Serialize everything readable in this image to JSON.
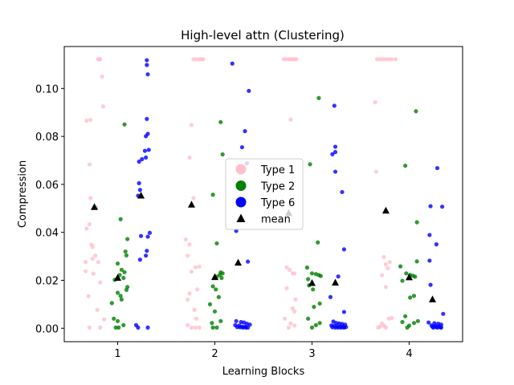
{
  "chart_data": {
    "type": "scatter",
    "title": "High-level attn (Clustering)",
    "xlabel": "Learning Blocks",
    "ylabel": "Compression",
    "xlim": [
      0.45,
      4.55
    ],
    "ylim": [
      -0.0056,
      0.1175
    ],
    "xticks": [
      1,
      2,
      3,
      4
    ],
    "xtick_labels": [
      "1",
      "2",
      "3",
      "4"
    ],
    "yticks": [
      0.0,
      0.02,
      0.04,
      0.06,
      0.08,
      0.1
    ],
    "ytick_labels": [
      "0.00",
      "0.02",
      "0.04",
      "0.06",
      "0.08",
      "0.10"
    ],
    "legend_position": "center",
    "series": [
      {
        "name": "Type 1",
        "color": "#ffc0cb",
        "marker": "circle",
        "points": [
          [
            0.8,
            0.1122
          ],
          [
            0.81,
            0.1122
          ],
          [
            0.82,
            0.1122
          ],
          [
            0.84,
            0.105
          ],
          [
            0.85,
            0.0925
          ],
          [
            0.68,
            0.0866
          ],
          [
            0.72,
            0.0869
          ],
          [
            0.71,
            0.0683
          ],
          [
            0.72,
            0.0543
          ],
          [
            0.78,
            0.0505
          ],
          [
            0.71,
            0.0434
          ],
          [
            0.68,
            0.0416
          ],
          [
            0.73,
            0.0349
          ],
          [
            0.74,
            0.0339
          ],
          [
            0.77,
            0.0303
          ],
          [
            0.74,
            0.029
          ],
          [
            0.67,
            0.0276
          ],
          [
            0.8,
            0.0276
          ],
          [
            0.75,
            0.0228
          ],
          [
            0.67,
            0.0238
          ],
          [
            0.82,
            0.0191
          ],
          [
            0.7,
            0.0134
          ],
          [
            0.79,
            0.0077
          ],
          [
            0.86,
            0.0037
          ],
          [
            0.71,
            0.0003
          ],
          [
            0.82,
            0.0003
          ],
          [
            1.78,
            0.1122
          ],
          [
            1.81,
            0.1122
          ],
          [
            1.84,
            0.1122
          ],
          [
            1.86,
            0.1122
          ],
          [
            1.88,
            0.1122
          ],
          [
            1.76,
            0.0848
          ],
          [
            1.74,
            0.0712
          ],
          [
            1.78,
            0.0543
          ],
          [
            1.7,
            0.037
          ],
          [
            1.74,
            0.035
          ],
          [
            1.72,
            0.0303
          ],
          [
            1.8,
            0.0254
          ],
          [
            1.76,
            0.0236
          ],
          [
            1.84,
            0.0257
          ],
          [
            1.82,
            0.0162
          ],
          [
            1.74,
            0.0145
          ],
          [
            1.72,
            0.0119
          ],
          [
            1.79,
            0.0077
          ],
          [
            1.81,
            0.004
          ],
          [
            1.72,
            0.0013
          ],
          [
            1.76,
            0.0003
          ],
          [
            1.8,
            0.0003
          ],
          [
            1.84,
            0.0003
          ],
          [
            2.71,
            0.1122
          ],
          [
            2.73,
            0.1122
          ],
          [
            2.76,
            0.1122
          ],
          [
            2.78,
            0.1122
          ],
          [
            2.8,
            0.1122
          ],
          [
            2.82,
            0.1122
          ],
          [
            2.84,
            0.1122
          ],
          [
            2.78,
            0.087
          ],
          [
            2.79,
            0.0519
          ],
          [
            2.74,
            0.0254
          ],
          [
            2.77,
            0.0243
          ],
          [
            2.8,
            0.0229
          ],
          [
            2.82,
            0.0229
          ],
          [
            2.74,
            0.0167
          ],
          [
            2.83,
            0.012
          ],
          [
            2.8,
            0.0083
          ],
          [
            2.82,
            0.007
          ],
          [
            2.72,
            0.004
          ],
          [
            2.78,
            0.002
          ],
          [
            2.82,
            0.0011
          ],
          [
            2.76,
            0.0003
          ],
          [
            3.67,
            0.1122
          ],
          [
            3.7,
            0.1122
          ],
          [
            3.73,
            0.1122
          ],
          [
            3.76,
            0.1122
          ],
          [
            3.79,
            0.1122
          ],
          [
            3.82,
            0.1122
          ],
          [
            3.86,
            0.1122
          ],
          [
            3.65,
            0.0943
          ],
          [
            3.66,
            0.0653
          ],
          [
            3.74,
            0.0297
          ],
          [
            3.76,
            0.0267
          ],
          [
            3.8,
            0.0276
          ],
          [
            3.78,
            0.025
          ],
          [
            3.72,
            0.0221
          ],
          [
            3.76,
            0.0172
          ],
          [
            3.79,
            0.004
          ],
          [
            3.82,
            0.0043
          ],
          [
            3.72,
            0.002
          ],
          [
            3.74,
            0.0011
          ],
          [
            3.7,
            0.0007
          ],
          [
            3.68,
            0.0003
          ],
          [
            3.76,
            0.0003
          ]
        ]
      },
      {
        "name": "Type 2",
        "color": "#008000",
        "marker": "circle",
        "points": [
          [
            1.07,
            0.085
          ],
          [
            1.03,
            0.0455
          ],
          [
            1.1,
            0.0372
          ],
          [
            1.08,
            0.032
          ],
          [
            1.09,
            0.0304
          ],
          [
            1.0,
            0.027
          ],
          [
            1.04,
            0.0244
          ],
          [
            1.07,
            0.0234
          ],
          [
            1.02,
            0.0222
          ],
          [
            1.06,
            0.021
          ],
          [
            0.97,
            0.0202
          ],
          [
            1.1,
            0.0172
          ],
          [
            1.09,
            0.016
          ],
          [
            1.0,
            0.0148
          ],
          [
            1.03,
            0.0135
          ],
          [
            1.04,
            0.012
          ],
          [
            0.94,
            0.0105
          ],
          [
            0.96,
            0.004
          ],
          [
            1.0,
            0.003
          ],
          [
            1.06,
            0.0013
          ],
          [
            1.01,
            0.0003
          ],
          [
            0.98,
            0.0003
          ],
          [
            2.06,
            0.086
          ],
          [
            2.08,
            0.0725
          ],
          [
            1.98,
            0.0557
          ],
          [
            2.02,
            0.0354
          ],
          [
            2.06,
            0.0233
          ],
          [
            2.08,
            0.0229
          ],
          [
            2.05,
            0.0222
          ],
          [
            2.02,
            0.0215
          ],
          [
            2.07,
            0.021
          ],
          [
            1.98,
            0.0175
          ],
          [
            2.01,
            0.0162
          ],
          [
            2.04,
            0.013
          ],
          [
            1.95,
            0.01
          ],
          [
            2.0,
            0.007
          ],
          [
            2.06,
            0.003
          ],
          [
            1.97,
            0.0022
          ],
          [
            1.98,
            0.0003
          ],
          [
            2.02,
            0.0003
          ],
          [
            3.07,
            0.096
          ],
          [
            2.98,
            0.0684
          ],
          [
            3.06,
            0.0358
          ],
          [
            2.95,
            0.0253
          ],
          [
            3.0,
            0.0229
          ],
          [
            3.04,
            0.0226
          ],
          [
            3.07,
            0.0222
          ],
          [
            3.09,
            0.0218
          ],
          [
            2.96,
            0.0205
          ],
          [
            2.97,
            0.0179
          ],
          [
            3.01,
            0.0162
          ],
          [
            3.08,
            0.0103
          ],
          [
            3.02,
            0.0089
          ],
          [
            2.96,
            0.004
          ],
          [
            3.08,
            0.0022
          ],
          [
            3.04,
            0.0013
          ],
          [
            3.0,
            0.0003
          ],
          [
            4.07,
            0.0905
          ],
          [
            3.96,
            0.0678
          ],
          [
            4.08,
            0.0442
          ],
          [
            4.08,
            0.0279
          ],
          [
            3.91,
            0.0258
          ],
          [
            3.97,
            0.0229
          ],
          [
            4.01,
            0.0222
          ],
          [
            4.04,
            0.0219
          ],
          [
            4.06,
            0.0215
          ],
          [
            3.93,
            0.0198
          ],
          [
            4.01,
            0.0128
          ],
          [
            4.05,
            0.0135
          ],
          [
            3.96,
            0.005
          ],
          [
            3.93,
            0.0026
          ],
          [
            4.09,
            0.003
          ],
          [
            4.05,
            0.0022
          ],
          [
            4.0,
            0.0011
          ],
          [
            3.98,
            0.0003
          ]
        ]
      },
      {
        "name": "Type 6",
        "color": "#0000ff",
        "marker": "circle",
        "points": [
          [
            1.3,
            0.1118
          ],
          [
            1.3,
            0.1098
          ],
          [
            1.31,
            0.1059
          ],
          [
            1.3,
            0.0873
          ],
          [
            1.31,
            0.0811
          ],
          [
            1.29,
            0.0801
          ],
          [
            1.28,
            0.074
          ],
          [
            1.32,
            0.0744
          ],
          [
            1.29,
            0.0712
          ],
          [
            1.22,
            0.0695
          ],
          [
            1.25,
            0.0705
          ],
          [
            1.22,
            0.0605
          ],
          [
            1.23,
            0.0577
          ],
          [
            1.21,
            0.0553
          ],
          [
            1.33,
            0.0398
          ],
          [
            1.31,
            0.0382
          ],
          [
            1.24,
            0.0385
          ],
          [
            1.3,
            0.0323
          ],
          [
            1.29,
            0.0303
          ],
          [
            1.23,
            0.0286
          ],
          [
            1.19,
            0.0013
          ],
          [
            1.21,
            0.0003
          ],
          [
            1.31,
            0.0003
          ],
          [
            2.18,
            0.1104
          ],
          [
            2.35,
            0.099
          ],
          [
            2.31,
            0.0822
          ],
          [
            2.28,
            0.0755
          ],
          [
            2.33,
            0.0688
          ],
          [
            2.22,
            0.0406
          ],
          [
            2.34,
            0.0278
          ],
          [
            2.22,
            0.003
          ],
          [
            2.27,
            0.0026
          ],
          [
            2.3,
            0.0024
          ],
          [
            2.33,
            0.0019
          ],
          [
            2.36,
            0.0015
          ],
          [
            2.21,
            0.0013
          ],
          [
            2.25,
            0.0011
          ],
          [
            2.28,
            0.0007
          ],
          [
            2.31,
            0.0006
          ],
          [
            2.23,
            0.0005
          ],
          [
            2.26,
            0.0004
          ],
          [
            2.29,
            0.0003
          ],
          [
            2.32,
            0.0003
          ],
          [
            2.34,
            0.0003
          ],
          [
            3.23,
            0.0928
          ],
          [
            3.24,
            0.0757
          ],
          [
            3.24,
            0.0735
          ],
          [
            3.21,
            0.0726
          ],
          [
            3.24,
            0.0653
          ],
          [
            3.31,
            0.0568
          ],
          [
            3.33,
            0.0329
          ],
          [
            3.27,
            0.0216
          ],
          [
            3.19,
            0.013
          ],
          [
            3.33,
            0.0068
          ],
          [
            3.22,
            0.0028
          ],
          [
            3.25,
            0.0022
          ],
          [
            3.28,
            0.002
          ],
          [
            3.31,
            0.0018
          ],
          [
            3.34,
            0.0015
          ],
          [
            3.2,
            0.0012
          ],
          [
            3.23,
            0.001
          ],
          [
            3.26,
            0.0008
          ],
          [
            3.29,
            0.0007
          ],
          [
            3.32,
            0.0006
          ],
          [
            3.35,
            0.0005
          ],
          [
            3.21,
            0.0004
          ],
          [
            3.24,
            0.0003
          ],
          [
            3.27,
            0.0003
          ],
          [
            3.3,
            0.0003
          ],
          [
            3.33,
            0.0003
          ],
          [
            4.29,
            0.0668
          ],
          [
            4.34,
            0.0507
          ],
          [
            4.22,
            0.0509
          ],
          [
            4.21,
            0.0389
          ],
          [
            4.28,
            0.035
          ],
          [
            4.21,
            0.0282
          ],
          [
            4.22,
            0.0181
          ],
          [
            4.35,
            0.006
          ],
          [
            4.2,
            0.0024
          ],
          [
            4.26,
            0.0021
          ],
          [
            4.3,
            0.0019
          ],
          [
            4.33,
            0.0015
          ],
          [
            4.23,
            0.0012
          ],
          [
            4.27,
            0.001
          ],
          [
            4.31,
            0.0008
          ],
          [
            4.24,
            0.0006
          ],
          [
            4.28,
            0.0005
          ],
          [
            4.32,
            0.0004
          ],
          [
            4.25,
            0.0003
          ],
          [
            4.29,
            0.0003
          ],
          [
            4.33,
            0.0003
          ]
        ]
      },
      {
        "name": "mean",
        "color": "#000000",
        "marker": "triangle",
        "points": [
          [
            0.76,
            0.0505
          ],
          [
            1.24,
            0.0553
          ],
          [
            1.0,
            0.021
          ],
          [
            1.76,
            0.0515
          ],
          [
            2.24,
            0.0273
          ],
          [
            2.0,
            0.0213
          ],
          [
            2.76,
            0.048
          ],
          [
            3.0,
            0.0188
          ],
          [
            3.24,
            0.019
          ],
          [
            3.76,
            0.049
          ],
          [
            4.0,
            0.0212
          ],
          [
            4.24,
            0.012
          ]
        ]
      }
    ]
  }
}
